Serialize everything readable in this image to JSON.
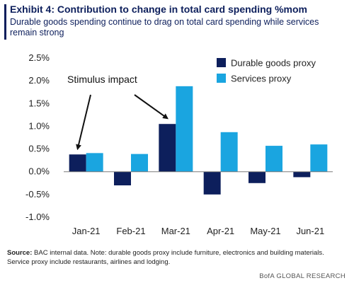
{
  "header": {
    "title": "Exhibit 4: Contribution to change in total card spending %mom",
    "subtitle": "Durable goods spending continue to drag on total card spending while services remain strong",
    "accent_color": "#0d1f5c"
  },
  "chart_data": {
    "type": "bar",
    "categories": [
      "Jan-21",
      "Feb-21",
      "Mar-21",
      "Apr-21",
      "May-21",
      "Jun-21"
    ],
    "series": [
      {
        "name": "Durable goods proxy",
        "color": "#0d1f5c",
        "values": [
          0.38,
          -0.3,
          1.05,
          -0.5,
          -0.25,
          -0.12
        ]
      },
      {
        "name": "Services proxy",
        "color": "#1aa5e0",
        "values": [
          0.41,
          0.39,
          1.88,
          0.87,
          0.57,
          0.6
        ]
      }
    ],
    "ylim": [
      -1.0,
      2.5
    ],
    "yticks": [
      "2.5%",
      "2.0%",
      "1.5%",
      "1.0%",
      "0.5%",
      "0.0%",
      "-0.5%",
      "-1.0%"
    ],
    "ytick_values": [
      2.5,
      2.0,
      1.5,
      1.0,
      0.5,
      0.0,
      -0.5,
      -1.0
    ],
    "legend_position": "top-right",
    "grid": false,
    "annotation": {
      "text": "Stimulus impact",
      "points_to": [
        "Jan-21",
        "Mar-21"
      ]
    }
  },
  "footer": {
    "source_label": "Source:",
    "source_text": "BAC internal data. Note: durable goods proxy include furniture, electronics and building materials. Service proxy include restaurants, airlines and lodging.",
    "brand": "BofA GLOBAL RESEARCH"
  }
}
